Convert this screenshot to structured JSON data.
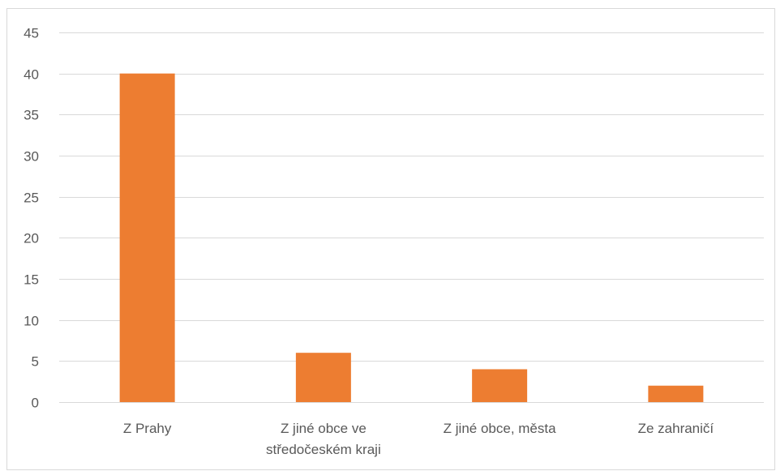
{
  "chart_data": {
    "type": "bar",
    "title": "",
    "xlabel": "",
    "ylabel": "",
    "categories": [
      [
        "Z Prahy"
      ],
      [
        "Z jiné obce ve",
        "středočeském kraji"
      ],
      [
        "Z jiné obce, města"
      ],
      [
        "Ze zahraničí"
      ]
    ],
    "values": [
      40,
      6,
      4,
      2
    ],
    "ylim": [
      0,
      45
    ],
    "yticks": [
      "0",
      "5",
      "10",
      "15",
      "20",
      "25",
      "30",
      "35",
      "40",
      "45"
    ],
    "grid": true,
    "legend": "none",
    "colors": {
      "bar": "#ED7D31",
      "grid": "#D9D9D9",
      "text": "#595959",
      "border": "#D9D9D9"
    }
  }
}
